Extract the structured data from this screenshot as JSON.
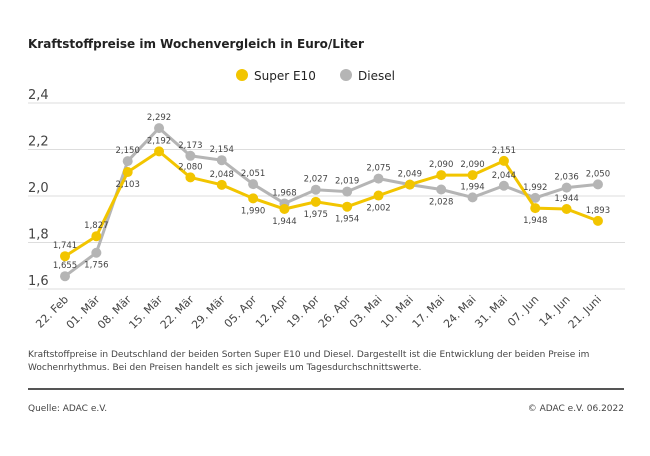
{
  "chart_data": {
    "type": "line",
    "title": "Kraftstoffpreise im Wochenvergleich in Euro/Liter",
    "categories": [
      "22. Feb",
      "01. Mär",
      "08. Mär",
      "15. Mär",
      "22. Mär",
      "29. Mär",
      "05. Apr",
      "12. Apr",
      "19. Apr",
      "26. Apr",
      "03. Mai",
      "10. Mai",
      "17. Mai",
      "24. Mai",
      "31. Mai",
      "07. Jun",
      "14. Jun",
      "21. Juni"
    ],
    "series": [
      {
        "name": "Super E10",
        "color": "#F2C500",
        "values": [
          1.741,
          1.827,
          2.103,
          2.192,
          2.08,
          2.048,
          1.99,
          1.944,
          1.975,
          1.954,
          2.002,
          2.049,
          2.09,
          2.09,
          2.151,
          1.948,
          1.944,
          1.893
        ]
      },
      {
        "name": "Diesel",
        "color": "#B5B5B5",
        "values": [
          1.655,
          1.756,
          2.15,
          2.292,
          2.173,
          2.154,
          2.051,
          1.968,
          2.027,
          2.019,
          2.075,
          2.049,
          2.028,
          1.994,
          2.044,
          1.992,
          2.036,
          2.05
        ]
      }
    ],
    "ylim": [
      1.6,
      2.4
    ],
    "yticks": [
      "1,6",
      "1,8",
      "2,0",
      "2,2",
      "2,4"
    ],
    "grid": true,
    "legend": "top-center"
  },
  "note": "Kraftstoffpreise in Deutschland der beiden Sorten Super E10 und Diesel. Dargestellt ist die Entwicklung der beiden Preise im Wochenrhythmus. Bei den Preisen handelt es sich jeweils um Tagesdurchschnittswerte.",
  "source": "Quelle: ADAC e.V.",
  "copyright": "© ADAC e.V. 06.2022"
}
